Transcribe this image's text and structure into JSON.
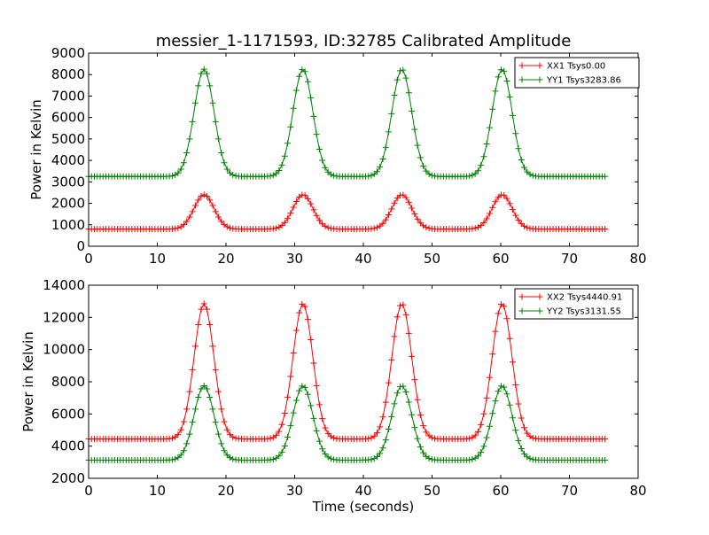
{
  "figure": {
    "title": "messier_1-1171593, ID:32785 Calibrated Amplitude"
  },
  "chart_data": [
    {
      "type": "line",
      "title": "messier_1-1171593, ID:32785 Calibrated Amplitude",
      "xlabel": "",
      "ylabel": "Power in Kelvin",
      "xlim": [
        0,
        80
      ],
      "ylim": [
        0,
        9000
      ],
      "xticks": [
        0,
        10,
        20,
        30,
        40,
        50,
        60,
        70,
        80
      ],
      "yticks": [
        0,
        1000,
        2000,
        3000,
        4000,
        5000,
        6000,
        7000,
        8000,
        9000
      ],
      "grid": false,
      "legend_position": "top-right",
      "marker": "+",
      "x_range": [
        0,
        75.5
      ],
      "peaks_x": [
        16.8,
        31.2,
        45.6,
        60.2
      ],
      "series": [
        {
          "name": "XX1 Tsys0.00",
          "color": "#ff0000",
          "baseline": 800,
          "peak": 2400
        },
        {
          "name": "YY1 Tsys3283.86",
          "color": "#008000",
          "baseline": 3250,
          "peak": 8250
        }
      ]
    },
    {
      "type": "line",
      "title": "",
      "xlabel": "Time (seconds)",
      "ylabel": "Power in Kelvin",
      "xlim": [
        0,
        80
      ],
      "ylim": [
        2000,
        14000
      ],
      "xticks": [
        0,
        10,
        20,
        30,
        40,
        50,
        60,
        70,
        80
      ],
      "yticks": [
        2000,
        4000,
        6000,
        8000,
        10000,
        12000,
        14000
      ],
      "grid": false,
      "legend_position": "top-right",
      "marker": "+",
      "x_range": [
        0,
        75.5
      ],
      "peaks_x": [
        16.8,
        31.2,
        45.6,
        60.2
      ],
      "series": [
        {
          "name": "XX2 Tsys4440.91",
          "color": "#ff0000",
          "baseline": 4440,
          "peak": 12850
        },
        {
          "name": "YY2 Tsys3131.55",
          "color": "#008000",
          "baseline": 3130,
          "peak": 7750
        }
      ]
    }
  ]
}
